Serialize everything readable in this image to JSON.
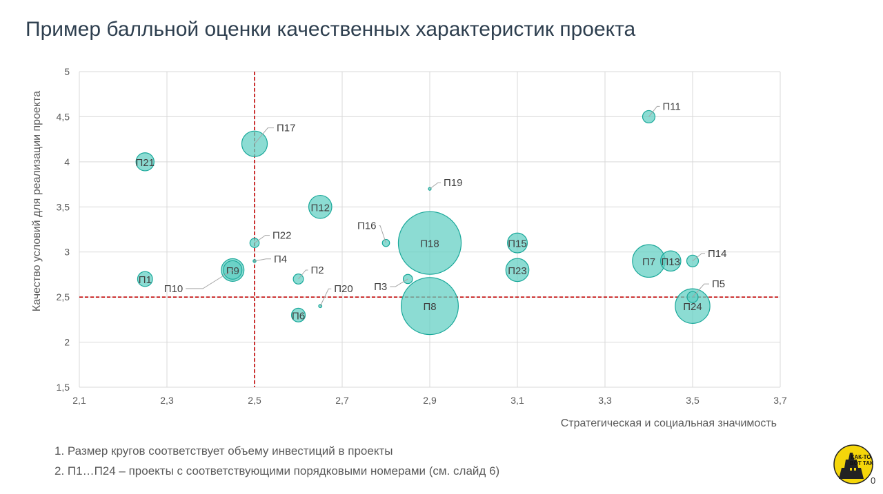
{
  "slide": {
    "title": "Пример балльной оценки качественных характеристик проекта",
    "notes": [
      "1. Размер кругов соответствует объему инвестиций в проекты",
      "2. П1…П24 – проекты с соответствующими порядковыми номерами (см. слайд 6)"
    ],
    "page_number": "0",
    "logo_text": "КАК-ТО ВОТ ТАК"
  },
  "chart_data": {
    "type": "bubble",
    "xlabel": "Стратегическая и социальная значимость",
    "ylabel": "Качество условий для реализации проекта",
    "xlim": [
      2.1,
      3.7
    ],
    "ylim": [
      1.5,
      5
    ],
    "xticks": [
      "2,1",
      "2,3",
      "2,5",
      "2,7",
      "2,9",
      "3,1",
      "3,3",
      "3,5",
      "3,7"
    ],
    "yticks": [
      "1,5",
      "2",
      "2,5",
      "3",
      "3,5",
      "4",
      "4,5",
      "5"
    ],
    "grid": true,
    "threshold_lines": {
      "x": 2.5,
      "y": 2.5,
      "color": "#c00000"
    },
    "bubble_color": "#5fcfc2",
    "bubble_stroke": "#1aa89a",
    "points": [
      {
        "label": "П1",
        "x": 2.25,
        "y": 2.7,
        "size": 1.3,
        "label_inside": true
      },
      {
        "label": "П2",
        "x": 2.6,
        "y": 2.7,
        "size": 0.6,
        "label_inside": false
      },
      {
        "label": "П3",
        "x": 2.85,
        "y": 2.7,
        "size": 0.5,
        "label_inside": false
      },
      {
        "label": "П4",
        "x": 2.5,
        "y": 2.9,
        "size": 0.05,
        "label_inside": false
      },
      {
        "label": "П5",
        "x": 3.5,
        "y": 2.5,
        "size": 0.7,
        "label_inside": false
      },
      {
        "label": "П6",
        "x": 2.6,
        "y": 2.3,
        "size": 1.1,
        "label_inside": true
      },
      {
        "label": "П7",
        "x": 3.4,
        "y": 2.9,
        "size": 6.2,
        "label_inside": true
      },
      {
        "label": "П8",
        "x": 2.9,
        "y": 2.4,
        "size": 19,
        "label_inside": true
      },
      {
        "label": "П9",
        "x": 2.45,
        "y": 2.8,
        "size": 3.0,
        "label_inside": true
      },
      {
        "label": "П10",
        "x": 2.45,
        "y": 2.8,
        "size": 2.0,
        "label_inside": false
      },
      {
        "label": "П11",
        "x": 3.4,
        "y": 4.5,
        "size": 0.9,
        "label_inside": false
      },
      {
        "label": "П12",
        "x": 2.65,
        "y": 3.5,
        "size": 3.1,
        "label_inside": true
      },
      {
        "label": "П13",
        "x": 3.45,
        "y": 2.9,
        "size": 2.4,
        "label_inside": true
      },
      {
        "label": "П14",
        "x": 3.5,
        "y": 2.9,
        "size": 0.8,
        "label_inside": false
      },
      {
        "label": "П15",
        "x": 3.1,
        "y": 3.1,
        "size": 2.3,
        "label_inside": true
      },
      {
        "label": "П16",
        "x": 2.8,
        "y": 3.1,
        "size": 0.3,
        "label_inside": false
      },
      {
        "label": "П17",
        "x": 2.5,
        "y": 4.2,
        "size": 3.8,
        "label_inside": false
      },
      {
        "label": "П18",
        "x": 2.9,
        "y": 3.1,
        "size": 23,
        "label_inside": true
      },
      {
        "label": "П19",
        "x": 2.9,
        "y": 3.7,
        "size": 0.02,
        "label_inside": false
      },
      {
        "label": "П20",
        "x": 2.65,
        "y": 2.4,
        "size": 0.06,
        "label_inside": false
      },
      {
        "label": "П21",
        "x": 2.25,
        "y": 4.0,
        "size": 1.9,
        "label_inside": true
      },
      {
        "label": "П22",
        "x": 2.5,
        "y": 3.1,
        "size": 0.5,
        "label_inside": false
      },
      {
        "label": "П23",
        "x": 3.1,
        "y": 2.8,
        "size": 3.1,
        "label_inside": true
      },
      {
        "label": "П24",
        "x": 3.5,
        "y": 2.4,
        "size": 7.0,
        "label_inside": true
      }
    ]
  }
}
